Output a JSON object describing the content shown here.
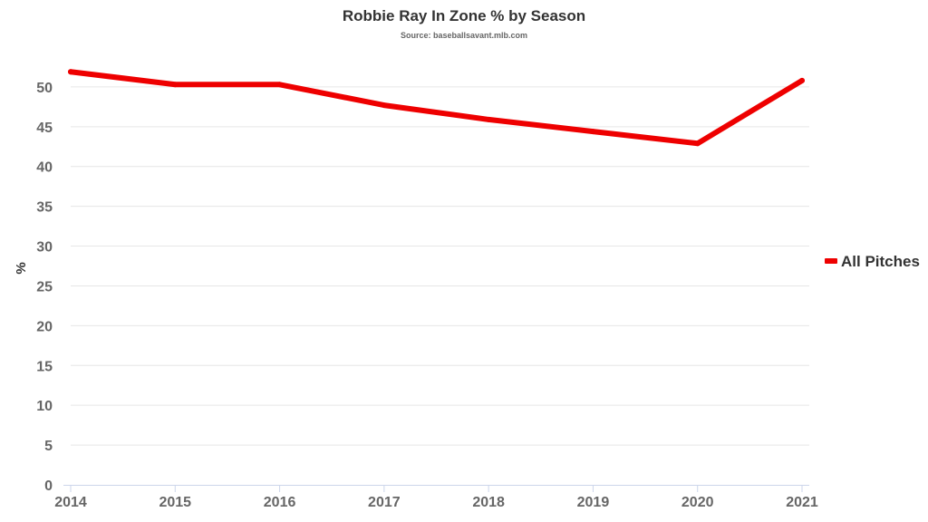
{
  "chart_data": {
    "type": "line",
    "title": "Robbie Ray In Zone % by Season",
    "subtitle": "Source: baseballsavant.mlb.com",
    "xlabel": "",
    "ylabel": "%",
    "categories": [
      "2014",
      "2015",
      "2016",
      "2017",
      "2018",
      "2019",
      "2020",
      "2021"
    ],
    "y_ticks": [
      "0",
      "5",
      "10",
      "15",
      "20",
      "25",
      "30",
      "35",
      "40",
      "45",
      "50"
    ],
    "ylim": [
      0,
      55
    ],
    "grid": true,
    "legend_position": "right",
    "series": [
      {
        "name": "All Pitches",
        "color": "#ee0000",
        "values": [
          51.9,
          50.3,
          50.3,
          47.7,
          45.9,
          44.4,
          42.9,
          50.8
        ]
      }
    ]
  }
}
